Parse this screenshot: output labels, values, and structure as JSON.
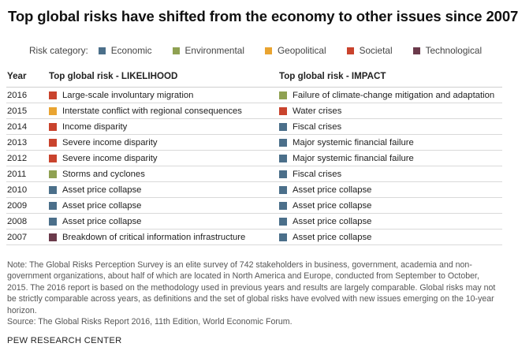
{
  "title": "Top global risks have shifted from the economy to other issues since 2007",
  "legend": {
    "label": "Risk category:",
    "items": [
      {
        "name": "Economic",
        "color": "#4b6f8a"
      },
      {
        "name": "Environmental",
        "color": "#8fa152"
      },
      {
        "name": "Geopolitical",
        "color": "#e9a431"
      },
      {
        "name": "Societal",
        "color": "#c9432d"
      },
      {
        "name": "Technological",
        "color": "#6b3a4b"
      }
    ]
  },
  "chart_data": {
    "type": "table",
    "columns": [
      "Year",
      "Top global risk - LIKELIHOOD",
      "Top global risk - IMPACT"
    ],
    "rows": [
      {
        "year": "2016",
        "likelihood": {
          "risk": "Large-scale involuntary migration",
          "category": "Societal"
        },
        "impact": {
          "risk": "Failure of climate-change mitigation and adaptation",
          "category": "Environmental"
        }
      },
      {
        "year": "2015",
        "likelihood": {
          "risk": "Interstate conflict with regional consequences",
          "category": "Geopolitical"
        },
        "impact": {
          "risk": "Water crises",
          "category": "Societal"
        }
      },
      {
        "year": "2014",
        "likelihood": {
          "risk": "Income disparity",
          "category": "Societal"
        },
        "impact": {
          "risk": "Fiscal crises",
          "category": "Economic"
        }
      },
      {
        "year": "2013",
        "likelihood": {
          "risk": "Severe income disparity",
          "category": "Societal"
        },
        "impact": {
          "risk": "Major systemic financial failure",
          "category": "Economic"
        }
      },
      {
        "year": "2012",
        "likelihood": {
          "risk": "Severe income disparity",
          "category": "Societal"
        },
        "impact": {
          "risk": "Major systemic financial failure",
          "category": "Economic"
        }
      },
      {
        "year": "2011",
        "likelihood": {
          "risk": "Storms and cyclones",
          "category": "Environmental"
        },
        "impact": {
          "risk": "Fiscal crises",
          "category": "Economic"
        }
      },
      {
        "year": "2010",
        "likelihood": {
          "risk": "Asset price collapse",
          "category": "Economic"
        },
        "impact": {
          "risk": "Asset price collapse",
          "category": "Economic"
        }
      },
      {
        "year": "2009",
        "likelihood": {
          "risk": "Asset price collapse",
          "category": "Economic"
        },
        "impact": {
          "risk": "Asset price collapse",
          "category": "Economic"
        }
      },
      {
        "year": "2008",
        "likelihood": {
          "risk": "Asset price collapse",
          "category": "Economic"
        },
        "impact": {
          "risk": "Asset price collapse",
          "category": "Economic"
        }
      },
      {
        "year": "2007",
        "likelihood": {
          "risk": "Breakdown of critical information infrastructure",
          "category": "Technological"
        },
        "impact": {
          "risk": "Asset price collapse",
          "category": "Economic"
        }
      }
    ]
  },
  "note": "Note: The Global Risks Perception Survey is an elite survey of 742 stakeholders in business, government, academia and non-government organizations, about half of which are located in North America and Europe, conducted from September to October, 2015. The 2016 report is based on the methodology used in previous years and results are largely comparable. Global risks may not be strictly comparable across years, as definitions and the set of global risks have evolved with new issues emerging on the 10-year horizon.",
  "source": "Source: The Global Risks Report 2016, 11th Edition, World Economic Forum.",
  "brand": "PEW RESEARCH CENTER"
}
